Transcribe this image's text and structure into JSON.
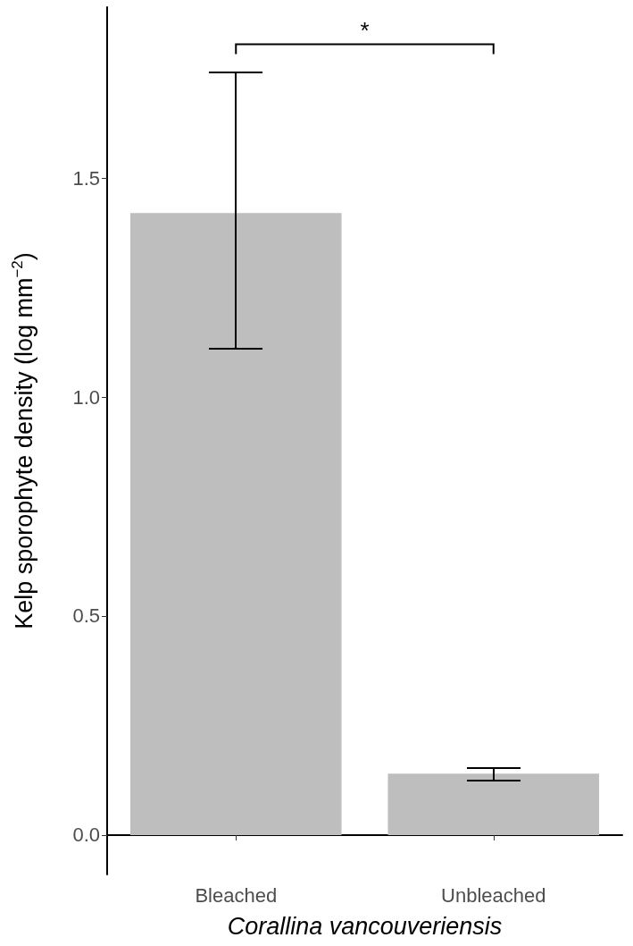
{
  "chart_data": {
    "type": "bar",
    "xlabel": "Corallina vancouveriensis",
    "ylabel": "Kelp sporophyte density (log mm$^{−2}$)",
    "categories": [
      "Bleached",
      "Unbleached"
    ],
    "values": [
      1.42,
      0.14
    ],
    "errors": [
      [
        1.11,
        1.74
      ],
      [
        0.125,
        0.153
      ]
    ],
    "color": "#bebebe",
    "ylim": [
      -0.09,
      1.89
    ],
    "yticks": [
      {
        "value": 0,
        "label": "0.0"
      },
      0.5,
      {
        "value": 1,
        "label": "1.0"
      },
      1.5
    ],
    "annotations": [
      "*"
    ]
  }
}
